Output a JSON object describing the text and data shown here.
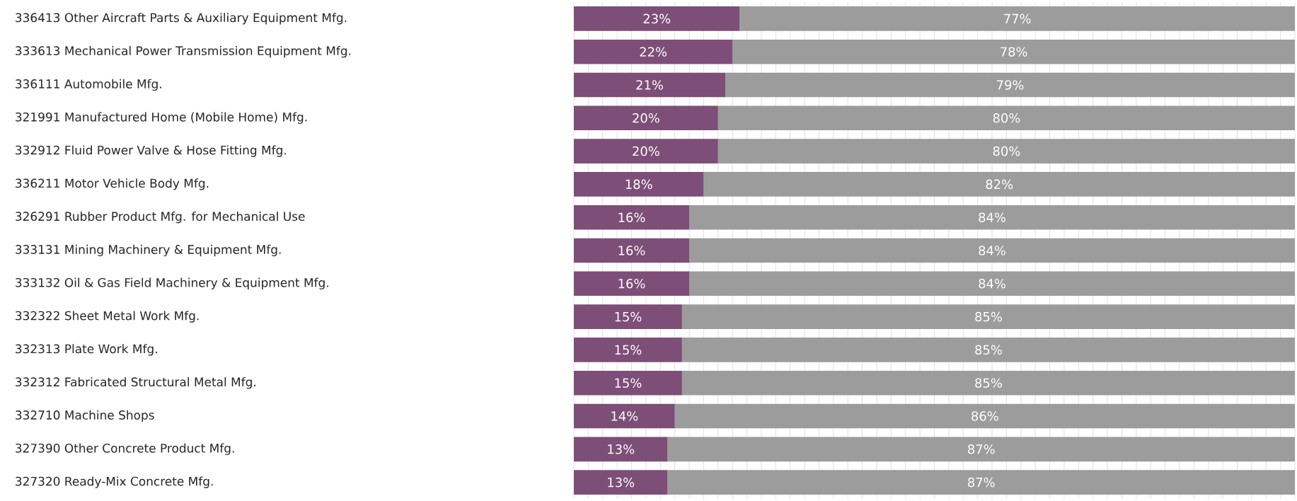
{
  "chart_data": {
    "type": "bar",
    "orientation": "horizontal",
    "stacked": true,
    "grid": "x",
    "tick_labels": "y",
    "xlim": [
      0,
      100
    ],
    "categories": [
      "336413  Other Aircraft Parts & Auxiliary Equipment Mfg.",
      "333613  Mechanical Power Transmission Equipment Mfg.",
      "336111  Automobile Mfg.",
      "321991  Manufactured Home (Mobile Home) Mfg.",
      "332912  Fluid Power Valve & Hose Fitting Mfg.",
      "336211  Motor Vehicle Body Mfg.",
      "326291  Rubber Product Mfg. for Mechanical Use",
      "333131  Mining Machinery & Equipment Mfg.",
      "333132  Oil & Gas Field Machinery & Equipment Mfg.",
      "332322  Sheet Metal Work Mfg.",
      "332313  Plate Work Mfg.",
      "332312  Fabricated Structural Metal Mfg.",
      "332710  Machine Shops",
      "327390  Other Concrete Product Mfg.",
      "327320  Ready-Mix Concrete Mfg."
    ],
    "series": [
      {
        "color": "#7d4e78",
        "values": [
          23,
          22,
          21,
          20,
          20,
          18,
          16,
          16,
          16,
          15,
          15,
          15,
          14,
          13,
          13
        ],
        "value_labels": [
          "23%",
          "22%",
          "21%",
          "20%",
          "20%",
          "18%",
          "16%",
          "16%",
          "16%",
          "15%",
          "15%",
          "15%",
          "14%",
          "13%",
          "13%"
        ]
      },
      {
        "color": "#9c9c9c",
        "values": [
          77,
          78,
          79,
          80,
          80,
          82,
          84,
          84,
          84,
          85,
          85,
          85,
          86,
          87,
          87
        ],
        "value_labels": [
          "77%",
          "78%",
          "79%",
          "80%",
          "80%",
          "82%",
          "84%",
          "84%",
          "84%",
          "85%",
          "85%",
          "85%",
          "86%",
          "87%",
          "87%"
        ]
      }
    ]
  }
}
